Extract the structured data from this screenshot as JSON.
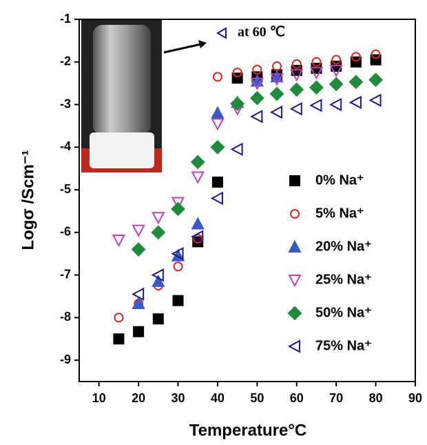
{
  "chart_data": {
    "type": "scatter",
    "x_label": "Temperature°C",
    "y_label": "Logσ /Scm⁻¹",
    "annotation": "at 60 ℃",
    "xlim": [
      5,
      90
    ],
    "xticks": [
      10,
      20,
      30,
      40,
      50,
      60,
      70,
      80,
      90
    ],
    "ylim": [
      -9.5,
      -1
    ],
    "yticks": [
      -9,
      -8,
      -7,
      -6,
      -5,
      -4,
      -3,
      -2,
      -1
    ],
    "series": [
      {
        "name": "0% Na⁺",
        "color": "#000000",
        "marker": "square",
        "x": [
          15,
          20,
          25,
          30,
          35,
          40,
          45,
          50,
          55,
          60,
          65,
          70,
          75,
          80
        ],
        "values": [
          -8.5,
          -8.33,
          -8.03,
          -7.6,
          -6.22,
          -4.82,
          -2.38,
          -2.35,
          -2.3,
          -2.2,
          -2.15,
          -2.1,
          -2.0,
          -1.95
        ]
      },
      {
        "name": "5% Na⁺",
        "color": "#e8231f",
        "marker": "circle-open",
        "x": [
          15,
          20,
          25,
          30,
          35,
          40,
          45,
          50,
          55,
          60,
          65,
          70,
          75,
          80
        ],
        "values": [
          -8.0,
          -7.67,
          -7.25,
          -6.8,
          -6.15,
          -2.35,
          -2.25,
          -2.18,
          -2.1,
          -2.05,
          -2.0,
          -1.95,
          -1.88,
          -1.82
        ]
      },
      {
        "name": "20% Na⁺",
        "color": "#3a5bc7",
        "marker": "triangle-up",
        "x": [
          20,
          25,
          30,
          35,
          40,
          45,
          50,
          55
        ],
        "values": [
          -7.67,
          -7.15,
          -6.55,
          -5.8,
          -3.2,
          -2.95,
          -2.45,
          -2.35
        ]
      },
      {
        "name": "25% Na⁺",
        "color": "#c040c0",
        "marker": "triangle-down-open",
        "x": [
          15,
          20,
          25,
          30,
          35,
          40,
          45,
          50,
          55,
          60,
          65,
          70
        ],
        "values": [
          -6.18,
          -5.95,
          -5.65,
          -5.3,
          -4.7,
          -3.45,
          -3.1,
          -2.5,
          -2.4,
          -2.3,
          -2.25,
          -2.2
        ]
      },
      {
        "name": "50% Na⁺",
        "color": "#1e8c3a",
        "marker": "diamond",
        "x": [
          20,
          25,
          30,
          35,
          40,
          45,
          50,
          55,
          60,
          65,
          70,
          75,
          80
        ],
        "values": [
          -6.4,
          -6.0,
          -5.45,
          -4.35,
          -4.0,
          -2.98,
          -2.85,
          -2.75,
          -2.65,
          -2.6,
          -2.52,
          -2.47,
          -2.42
        ]
      },
      {
        "name": "75% Na⁺",
        "color": "#1a1a8c",
        "marker": "triangle-left-open",
        "x": [
          20,
          25,
          30,
          35,
          40,
          45,
          50,
          55,
          60,
          65,
          70,
          75,
          80
        ],
        "values": [
          -7.45,
          -7.0,
          -6.5,
          -6.1,
          -5.2,
          -4.05,
          -3.28,
          -3.18,
          -3.1,
          -3.02,
          -3.0,
          -2.95,
          -2.9
        ]
      }
    ]
  }
}
